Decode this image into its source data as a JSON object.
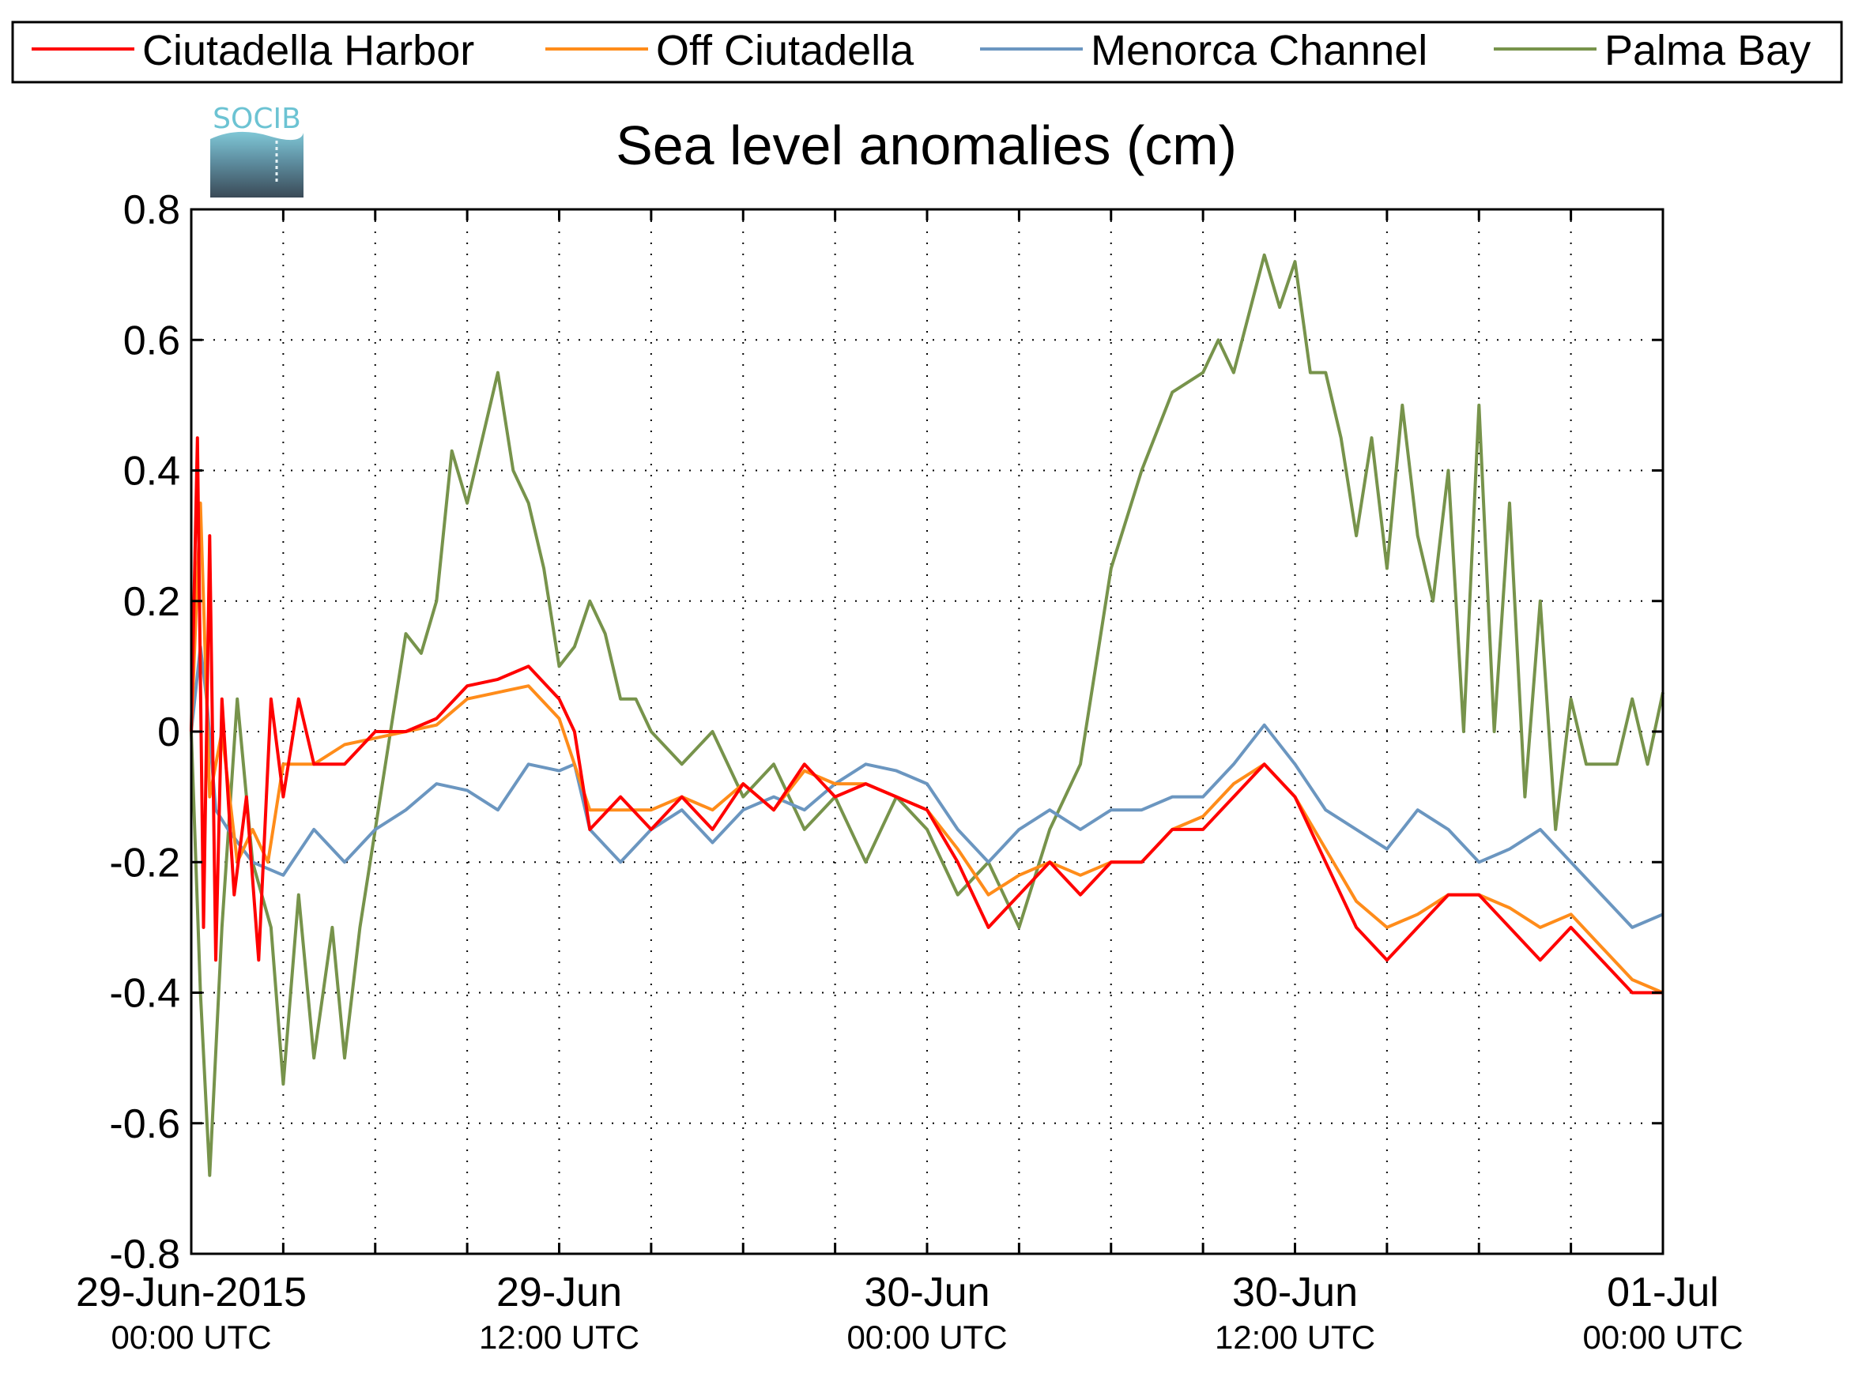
{
  "logo": {
    "text": "SOCIB"
  },
  "chart_data": {
    "type": "line",
    "title": "Sea level anomalies (cm)",
    "xlabel": "",
    "ylabel": "",
    "ylim": [
      -0.8,
      0.8
    ],
    "yticks": [
      "0.8",
      "0.6",
      "0.4",
      "0.2",
      "0",
      "-0.2",
      "-0.4",
      "-0.6",
      "-0.8"
    ],
    "xlim_hours": [
      0,
      48
    ],
    "xticks": [
      {
        "hour": 0,
        "date": "29-Jun-2015",
        "time": "00:00 UTC"
      },
      {
        "hour": 12,
        "date": "29-Jun",
        "time": "12:00 UTC"
      },
      {
        "hour": 24,
        "date": "30-Jun",
        "time": "00:00 UTC"
      },
      {
        "hour": 36,
        "date": "30-Jun",
        "time": "12:00 UTC"
      },
      {
        "hour": 48,
        "date": "01-Jul",
        "time": "00:00 UTC"
      }
    ],
    "minor_tick_hours": [
      3,
      6,
      9,
      15,
      18,
      21,
      27,
      30,
      33,
      39,
      42,
      45
    ],
    "grid": true,
    "legend_position": "top",
    "series": [
      {
        "name": "Ciutadella Harbor",
        "color": "#ff0000",
        "points": [
          [
            0,
            0
          ],
          [
            0.2,
            0.45
          ],
          [
            0.4,
            -0.3
          ],
          [
            0.6,
            0.3
          ],
          [
            0.8,
            -0.35
          ],
          [
            1,
            0.05
          ],
          [
            1.4,
            -0.25
          ],
          [
            1.8,
            -0.1
          ],
          [
            2.2,
            -0.35
          ],
          [
            2.6,
            0.05
          ],
          [
            3,
            -0.1
          ],
          [
            3.5,
            0.05
          ],
          [
            4,
            -0.05
          ],
          [
            5,
            -0.05
          ],
          [
            6,
            0
          ],
          [
            7,
            0.0
          ],
          [
            8,
            0.02
          ],
          [
            9,
            0.07
          ],
          [
            10,
            0.08
          ],
          [
            11,
            0.1
          ],
          [
            12,
            0.05
          ],
          [
            12.5,
            0.0
          ],
          [
            13,
            -0.15
          ],
          [
            14,
            -0.1
          ],
          [
            15,
            -0.15
          ],
          [
            16,
            -0.1
          ],
          [
            17,
            -0.15
          ],
          [
            18,
            -0.08
          ],
          [
            19,
            -0.12
          ],
          [
            20,
            -0.05
          ],
          [
            21,
            -0.1
          ],
          [
            22,
            -0.08
          ],
          [
            23,
            -0.1
          ],
          [
            24,
            -0.12
          ],
          [
            25,
            -0.2
          ],
          [
            26,
            -0.3
          ],
          [
            27,
            -0.25
          ],
          [
            28,
            -0.2
          ],
          [
            29,
            -0.25
          ],
          [
            30,
            -0.2
          ],
          [
            31,
            -0.2
          ],
          [
            32,
            -0.15
          ],
          [
            33,
            -0.15
          ],
          [
            34,
            -0.1
          ],
          [
            35,
            -0.05
          ],
          [
            36,
            -0.1
          ],
          [
            37,
            -0.2
          ],
          [
            38,
            -0.3
          ],
          [
            39,
            -0.35
          ],
          [
            40,
            -0.3
          ],
          [
            41,
            -0.25
          ],
          [
            42,
            -0.25
          ],
          [
            43,
            -0.3
          ],
          [
            44,
            -0.35
          ],
          [
            45,
            -0.3
          ],
          [
            46,
            -0.35
          ],
          [
            47,
            -0.4
          ],
          [
            48,
            -0.4
          ]
        ]
      },
      {
        "name": "Off Ciutadella",
        "color": "#ff8c1a",
        "points": [
          [
            0,
            0
          ],
          [
            0.3,
            0.35
          ],
          [
            0.6,
            -0.1
          ],
          [
            1,
            0
          ],
          [
            1.5,
            -0.2
          ],
          [
            2,
            -0.15
          ],
          [
            2.5,
            -0.2
          ],
          [
            3,
            -0.05
          ],
          [
            3.5,
            -0.05
          ],
          [
            4,
            -0.05
          ],
          [
            5,
            -0.02
          ],
          [
            6,
            -0.01
          ],
          [
            7,
            0
          ],
          [
            8,
            0.01
          ],
          [
            9,
            0.05
          ],
          [
            10,
            0.06
          ],
          [
            11,
            0.07
          ],
          [
            12,
            0.02
          ],
          [
            13,
            -0.12
          ],
          [
            14,
            -0.12
          ],
          [
            15,
            -0.12
          ],
          [
            16,
            -0.1
          ],
          [
            17,
            -0.12
          ],
          [
            18,
            -0.08
          ],
          [
            19,
            -0.12
          ],
          [
            20,
            -0.06
          ],
          [
            21,
            -0.08
          ],
          [
            22,
            -0.08
          ],
          [
            23,
            -0.1
          ],
          [
            24,
            -0.12
          ],
          [
            25,
            -0.18
          ],
          [
            26,
            -0.25
          ],
          [
            27,
            -0.22
          ],
          [
            28,
            -0.2
          ],
          [
            29,
            -0.22
          ],
          [
            30,
            -0.2
          ],
          [
            31,
            -0.2
          ],
          [
            32,
            -0.15
          ],
          [
            33,
            -0.13
          ],
          [
            34,
            -0.08
          ],
          [
            35,
            -0.05
          ],
          [
            36,
            -0.1
          ],
          [
            37,
            -0.18
          ],
          [
            38,
            -0.26
          ],
          [
            39,
            -0.3
          ],
          [
            40,
            -0.28
          ],
          [
            41,
            -0.25
          ],
          [
            42,
            -0.25
          ],
          [
            43,
            -0.27
          ],
          [
            44,
            -0.3
          ],
          [
            45,
            -0.28
          ],
          [
            46,
            -0.33
          ],
          [
            47,
            -0.38
          ],
          [
            48,
            -0.4
          ]
        ]
      },
      {
        "name": "Menorca Channel",
        "color": "#6b96c0",
        "points": [
          [
            0,
            0
          ],
          [
            0.3,
            0.13
          ],
          [
            0.5,
            0.05
          ],
          [
            0.8,
            -0.12
          ],
          [
            1.2,
            -0.15
          ],
          [
            2,
            -0.2
          ],
          [
            3,
            -0.22
          ],
          [
            4,
            -0.15
          ],
          [
            5,
            -0.2
          ],
          [
            6,
            -0.15
          ],
          [
            7,
            -0.12
          ],
          [
            8,
            -0.08
          ],
          [
            9,
            -0.09
          ],
          [
            10,
            -0.12
          ],
          [
            11,
            -0.05
          ],
          [
            12,
            -0.06
          ],
          [
            12.5,
            -0.05
          ],
          [
            13,
            -0.15
          ],
          [
            14,
            -0.2
          ],
          [
            15,
            -0.15
          ],
          [
            16,
            -0.12
          ],
          [
            17,
            -0.17
          ],
          [
            18,
            -0.12
          ],
          [
            19,
            -0.1
          ],
          [
            20,
            -0.12
          ],
          [
            21,
            -0.08
          ],
          [
            22,
            -0.05
          ],
          [
            23,
            -0.06
          ],
          [
            24,
            -0.08
          ],
          [
            25,
            -0.15
          ],
          [
            26,
            -0.2
          ],
          [
            27,
            -0.15
          ],
          [
            28,
            -0.12
          ],
          [
            29,
            -0.15
          ],
          [
            30,
            -0.12
          ],
          [
            31,
            -0.12
          ],
          [
            32,
            -0.1
          ],
          [
            33,
            -0.1
          ],
          [
            34,
            -0.05
          ],
          [
            35,
            0.01
          ],
          [
            36,
            -0.05
          ],
          [
            37,
            -0.12
          ],
          [
            38,
            -0.15
          ],
          [
            39,
            -0.18
          ],
          [
            40,
            -0.12
          ],
          [
            41,
            -0.15
          ],
          [
            42,
            -0.2
          ],
          [
            43,
            -0.18
          ],
          [
            44,
            -0.15
          ],
          [
            45,
            -0.2
          ],
          [
            46,
            -0.25
          ],
          [
            47,
            -0.3
          ],
          [
            48,
            -0.28
          ]
        ]
      },
      {
        "name": "Palma Bay",
        "color": "#77934b",
        "points": [
          [
            0,
            0
          ],
          [
            0.3,
            -0.4
          ],
          [
            0.6,
            -0.68
          ],
          [
            1,
            -0.3
          ],
          [
            1.5,
            0.05
          ],
          [
            2,
            -0.2
          ],
          [
            2.6,
            -0.3
          ],
          [
            3,
            -0.54
          ],
          [
            3.5,
            -0.25
          ],
          [
            4,
            -0.5
          ],
          [
            4.6,
            -0.3
          ],
          [
            5,
            -0.5
          ],
          [
            5.5,
            -0.3
          ],
          [
            6,
            -0.15
          ],
          [
            6.5,
            0.0
          ],
          [
            7,
            0.15
          ],
          [
            7.5,
            0.12
          ],
          [
            8,
            0.2
          ],
          [
            8.5,
            0.43
          ],
          [
            9,
            0.35
          ],
          [
            9.5,
            0.45
          ],
          [
            10,
            0.55
          ],
          [
            10.5,
            0.4
          ],
          [
            11,
            0.35
          ],
          [
            11.5,
            0.25
          ],
          [
            12,
            0.1
          ],
          [
            12.5,
            0.13
          ],
          [
            13,
            0.2
          ],
          [
            13.5,
            0.15
          ],
          [
            14,
            0.05
          ],
          [
            14.5,
            0.05
          ],
          [
            15,
            0.0
          ],
          [
            16,
            -0.05
          ],
          [
            17,
            0.0
          ],
          [
            18,
            -0.1
          ],
          [
            19,
            -0.05
          ],
          [
            20,
            -0.15
          ],
          [
            21,
            -0.1
          ],
          [
            22,
            -0.2
          ],
          [
            23,
            -0.1
          ],
          [
            24,
            -0.15
          ],
          [
            25,
            -0.25
          ],
          [
            26,
            -0.2
          ],
          [
            27,
            -0.3
          ],
          [
            28,
            -0.15
          ],
          [
            29,
            -0.05
          ],
          [
            29.5,
            0.1
          ],
          [
            30,
            0.25
          ],
          [
            31,
            0.4
          ],
          [
            32,
            0.52
          ],
          [
            33,
            0.55
          ],
          [
            33.5,
            0.6
          ],
          [
            34,
            0.55
          ],
          [
            35,
            0.73
          ],
          [
            35.5,
            0.65
          ],
          [
            36,
            0.72
          ],
          [
            36.5,
            0.55
          ],
          [
            37,
            0.55
          ],
          [
            37.5,
            0.45
          ],
          [
            38,
            0.3
          ],
          [
            38.5,
            0.45
          ],
          [
            39,
            0.25
          ],
          [
            39.5,
            0.5
          ],
          [
            40,
            0.3
          ],
          [
            40.5,
            0.2
          ],
          [
            41,
            0.4
          ],
          [
            41.5,
            0.0
          ],
          [
            42,
            0.5
          ],
          [
            42.5,
            0.0
          ],
          [
            43,
            0.35
          ],
          [
            43.5,
            -0.1
          ],
          [
            44,
            0.2
          ],
          [
            44.5,
            -0.15
          ],
          [
            45,
            0.05
          ],
          [
            45.5,
            -0.05
          ],
          [
            46,
            -0.05
          ],
          [
            46.5,
            -0.05
          ],
          [
            47,
            0.05
          ],
          [
            47.5,
            -0.05
          ],
          [
            48,
            0.06
          ]
        ]
      }
    ]
  }
}
